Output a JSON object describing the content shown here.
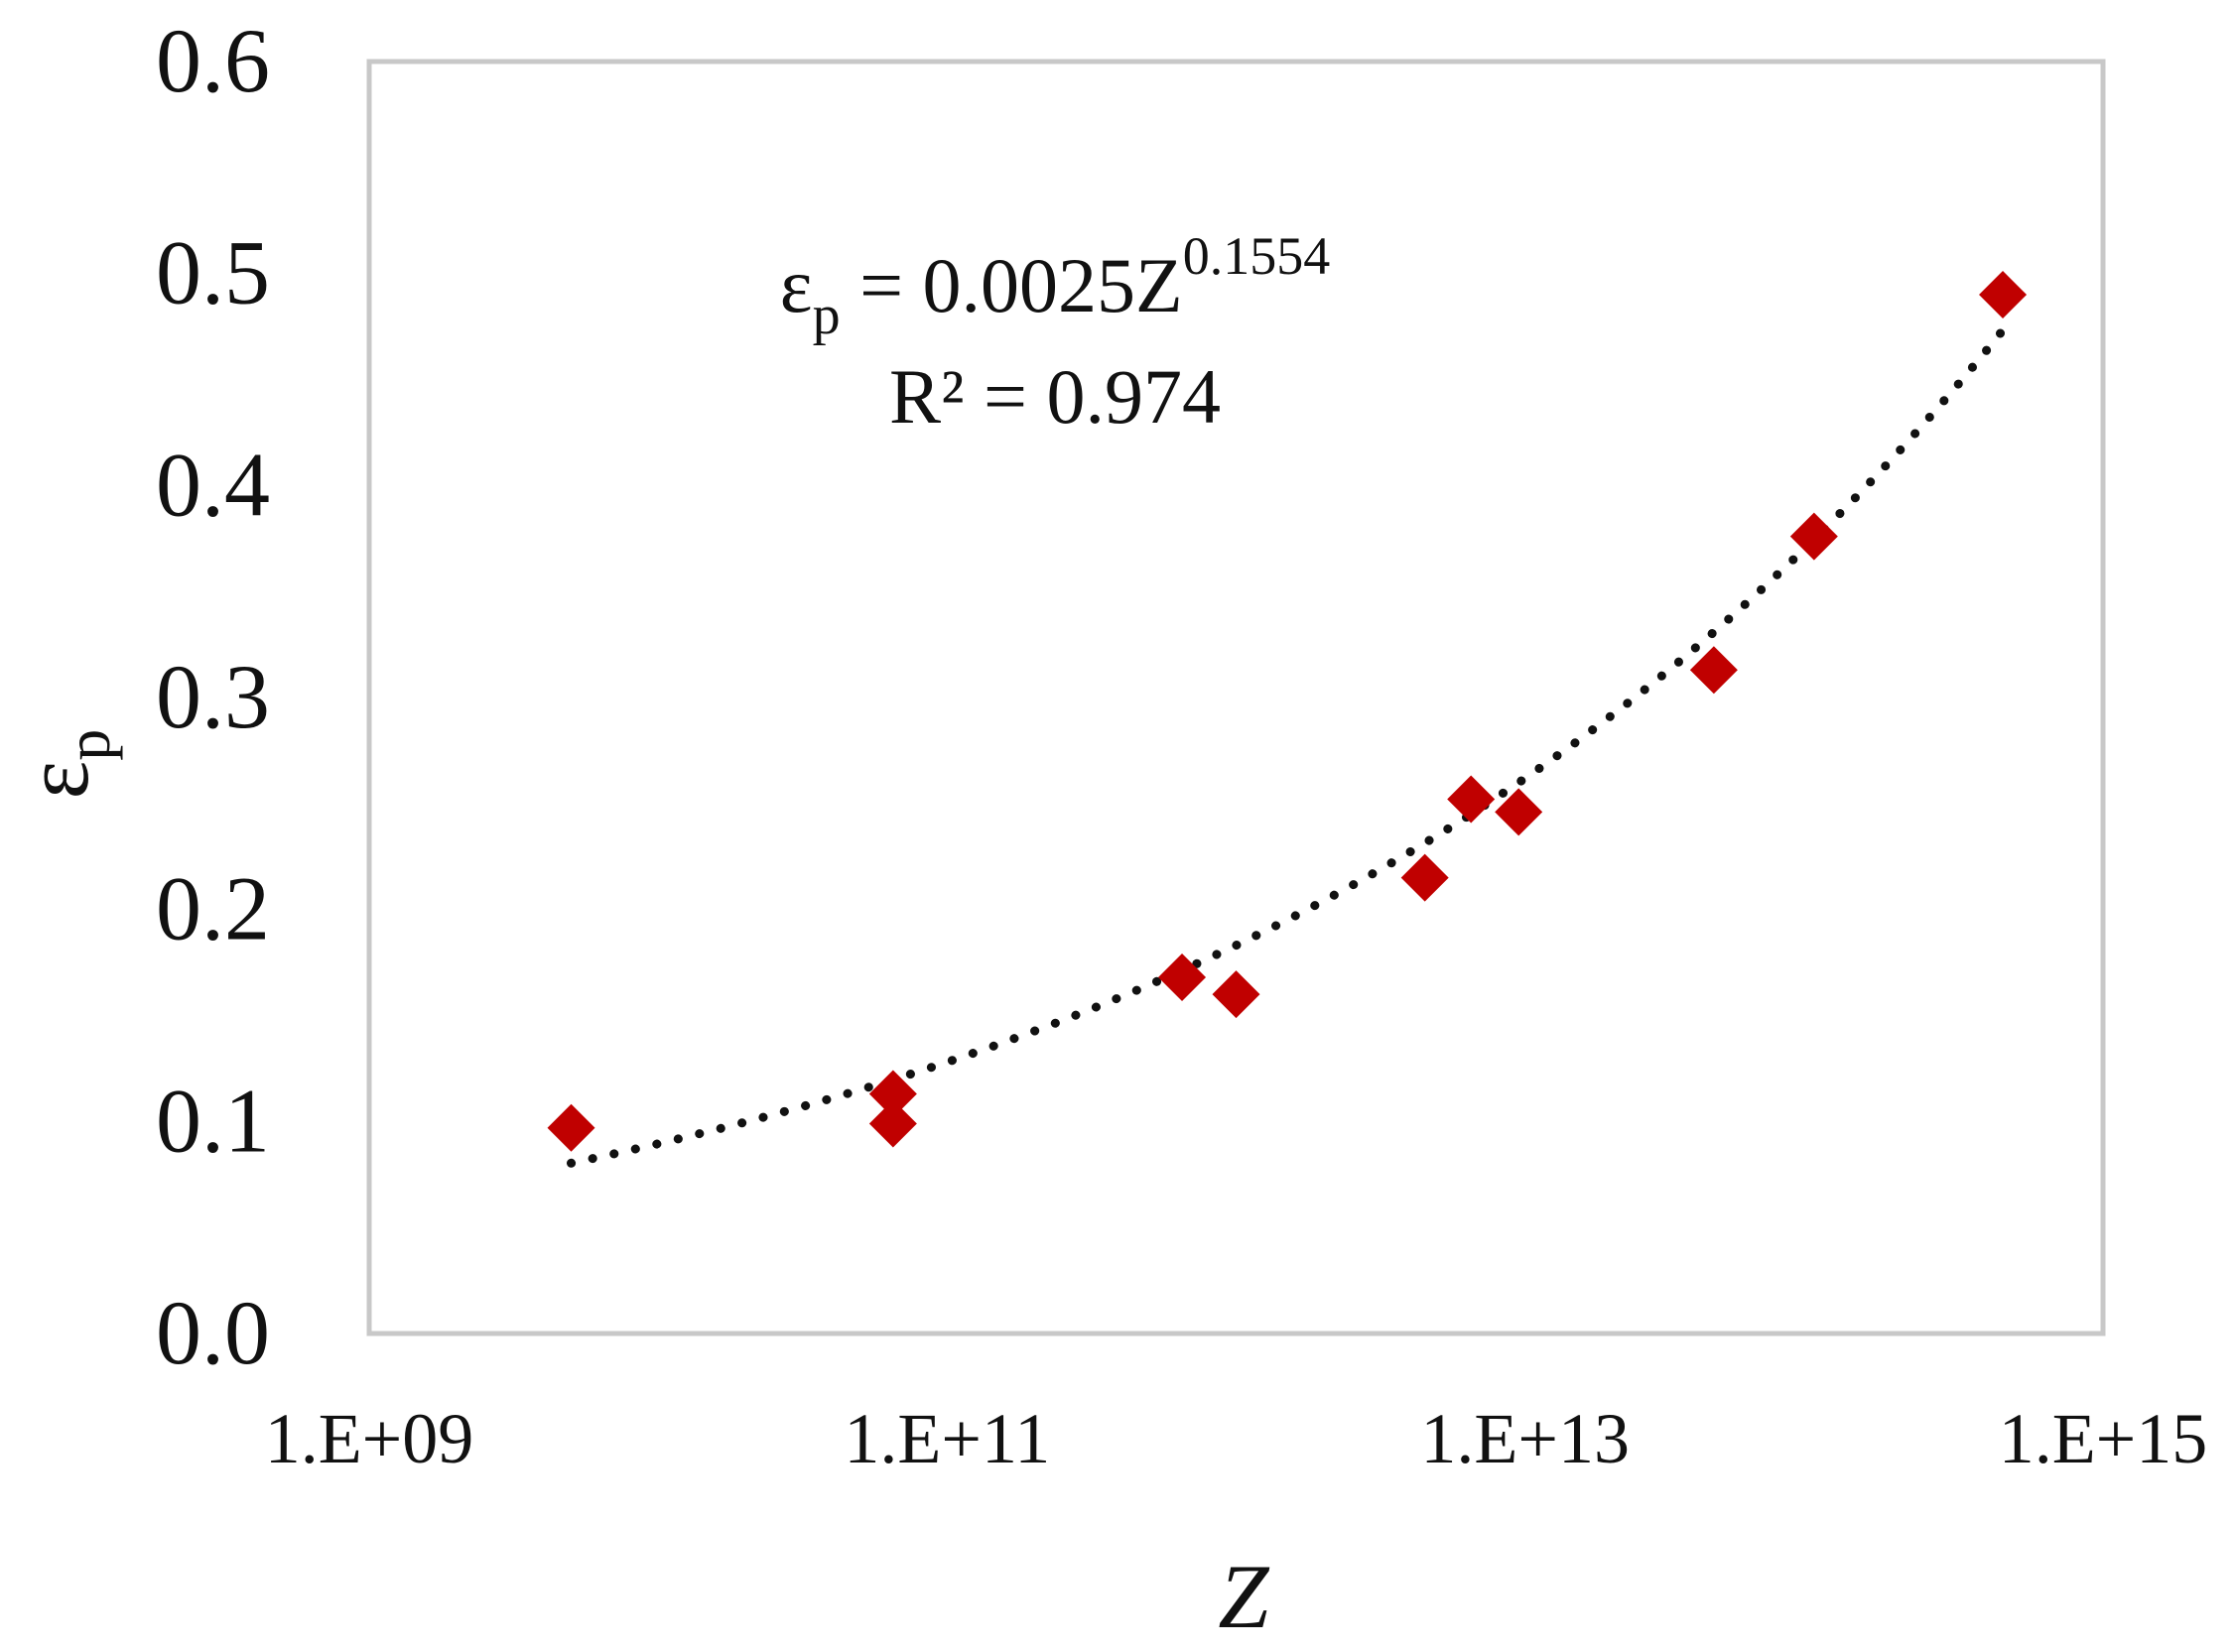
{
  "chart_data": {
    "type": "scatter",
    "title": "",
    "xlabel": "Z",
    "ylabel": {
      "main": "ε",
      "sub": "p"
    },
    "x_scale": "log10",
    "xlim": [
      1000000000.0,
      1000000000000000.0
    ],
    "ylim": [
      0,
      0.6
    ],
    "x_ticks": [
      1000000000.0,
      100000000000.0,
      10000000000000.0,
      1000000000000000.0
    ],
    "x_tick_labels": [
      "1.E+09",
      "1.E+11",
      "1.E+13",
      "1.E+15"
    ],
    "y_ticks": [
      0.0,
      0.1,
      0.2,
      0.3,
      0.4,
      0.5,
      0.6
    ],
    "y_tick_labels": [
      "0.0",
      "0.1",
      "0.2",
      "0.3",
      "0.4",
      "0.5",
      "0.6"
    ],
    "grid": false,
    "legend": "none",
    "series": [
      {
        "marker": "diamond",
        "color": "#C00000",
        "points": [
          {
            "x": 5000000000.0,
            "y": 0.097
          },
          {
            "x": 65000000000.0,
            "y": 0.113
          },
          {
            "x": 65000000000.0,
            "y": 0.099
          },
          {
            "x": 650000000000.0,
            "y": 0.168
          },
          {
            "x": 1000000000000.0,
            "y": 0.16
          },
          {
            "x": 4500000000000.0,
            "y": 0.215
          },
          {
            "x": 6500000000000.0,
            "y": 0.252
          },
          {
            "x": 9500000000000.0,
            "y": 0.246
          },
          {
            "x": 45000000000000.0,
            "y": 0.313
          },
          {
            "x": 100000000000000.0,
            "y": 0.376
          },
          {
            "x": 450000000000000.0,
            "y": 0.49
          }
        ]
      }
    ],
    "trendline": {
      "type": "power",
      "coefficient": 0.0025,
      "exponent": 0.1554,
      "x_range": [
        5000000000.0,
        450000000000000.0
      ],
      "style": "dotted",
      "color": "#111111"
    },
    "annotation": {
      "equation_lhs": "ε",
      "equation_lhs_sub": "p",
      "equation_mid": " = 0.0025Z",
      "equation_exp": "0.1554",
      "r2": "R² = 0.974"
    }
  }
}
